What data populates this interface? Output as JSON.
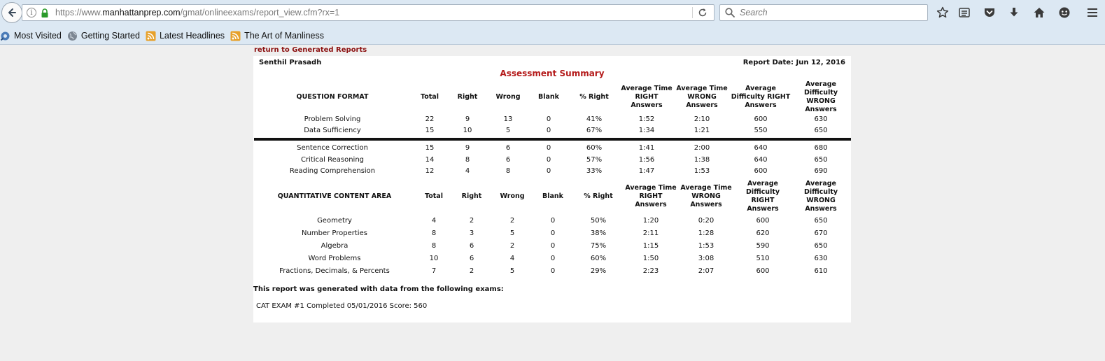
{
  "browser": {
    "url_prefix": "https://www.",
    "url_domain": "manhattanprep.com",
    "url_path": "/gmat/onlineexams/report_view.cfm?rx=1",
    "search_placeholder": "Search",
    "bookmarks": [
      {
        "label": "Most Visited",
        "icon": "gear-globe-icon"
      },
      {
        "label": "Getting Started",
        "icon": "globe-icon"
      },
      {
        "label": "Latest Headlines",
        "icon": "rss-icon"
      },
      {
        "label": "The Art of Manliness",
        "icon": "rss-icon"
      }
    ],
    "colors": {
      "chrome_bg": "#dce8f3",
      "lock_green": "#2a9a2a",
      "rss_orange": "#e7a12b"
    }
  },
  "page": {
    "return_link": "return to Generated Reports",
    "student_name": "Senthil Prasadh",
    "report_date": "Report Date: Jun 12, 2016",
    "title": "Assessment Summary",
    "title_color": "#b41a1a",
    "format_table": {
      "headers": [
        "QUESTION FORMAT",
        "Total",
        "Right",
        "Wrong",
        "Blank",
        "% Right",
        "Average Time RIGHT Answers",
        "Average Time WRONG Answers",
        "Average Difficulty RIGHT Answers",
        "Average Difficulty WRONG Answers"
      ],
      "rows_top": [
        [
          "Problem Solving",
          "22",
          "9",
          "13",
          "0",
          "41%",
          "1:52",
          "2:10",
          "600",
          "630"
        ],
        [
          "Data Sufficiency",
          "15",
          "10",
          "5",
          "0",
          "67%",
          "1:34",
          "1:21",
          "550",
          "650"
        ]
      ],
      "rows_bottom": [
        [
          "Sentence Correction",
          "15",
          "9",
          "6",
          "0",
          "60%",
          "1:41",
          "2:00",
          "640",
          "680"
        ],
        [
          "Critical Reasoning",
          "14",
          "8",
          "6",
          "0",
          "57%",
          "1:56",
          "1:38",
          "640",
          "650"
        ],
        [
          "Reading Comprehension",
          "12",
          "4",
          "8",
          "0",
          "33%",
          "1:47",
          "1:53",
          "600",
          "690"
        ]
      ]
    },
    "quant_table": {
      "headers": [
        "QUANTITATIVE CONTENT AREA",
        "Total",
        "Right",
        "Wrong",
        "Blank",
        "% Right",
        "Average Time RIGHT Answers",
        "Average Time WRONG Answers",
        "Average Difficulty RIGHT Answers",
        "Average Difficulty WRONG Answers"
      ],
      "rows": [
        [
          "Geometry",
          "4",
          "2",
          "2",
          "0",
          "50%",
          "1:20",
          "0:20",
          "600",
          "650"
        ],
        [
          "Number Properties",
          "8",
          "3",
          "5",
          "0",
          "38%",
          "2:11",
          "1:28",
          "620",
          "670"
        ],
        [
          "Algebra",
          "8",
          "6",
          "2",
          "0",
          "75%",
          "1:15",
          "1:53",
          "590",
          "650"
        ],
        [
          "Word Problems",
          "10",
          "6",
          "4",
          "0",
          "60%",
          "1:50",
          "3:08",
          "510",
          "630"
        ],
        [
          "Fractions, Decimals, & Percents",
          "7",
          "2",
          "5",
          "0",
          "29%",
          "2:23",
          "2:07",
          "600",
          "610"
        ]
      ]
    },
    "footer_note": "This report was generated with data from the following exams:",
    "exam_line": "CAT EXAM #1 Completed 05/01/2016 Score: 560"
  }
}
